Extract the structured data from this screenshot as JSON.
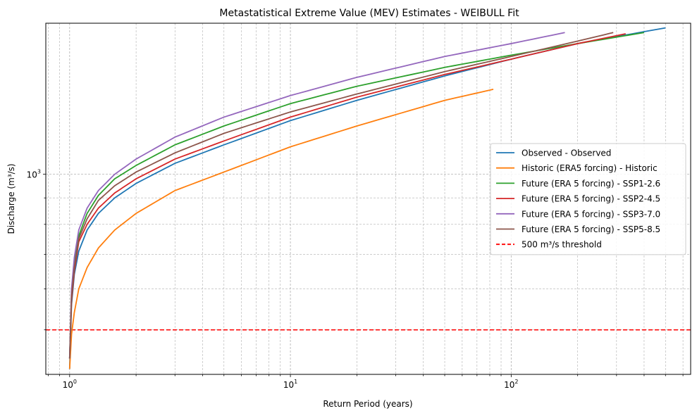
{
  "chart_data": {
    "type": "line",
    "title": "Metastatistical Extreme Value (MEV) Estimates - WEIBULL Fit",
    "xlabel": "Return Period (years)",
    "ylabel": "Discharge (m³/s)",
    "xscale": "log",
    "yscale": "log",
    "xlim": [
      0.78,
      650
    ],
    "ylim": [
      410,
      1960
    ],
    "grid": true,
    "legend_position": "center-right",
    "x_ticks": [
      {
        "value": 1,
        "label": "10",
        "sup": "0"
      },
      {
        "value": 10,
        "label": "10",
        "sup": "1"
      },
      {
        "value": 100,
        "label": "10",
        "sup": "2"
      }
    ],
    "y_ticks": [
      {
        "value": 1000,
        "label": "10",
        "sup": "3"
      }
    ],
    "series": [
      {
        "name": "Observed - Observed",
        "color": "#1f77b4",
        "x": [
          1.0,
          1.02,
          1.05,
          1.1,
          1.2,
          1.35,
          1.6,
          2,
          3,
          5,
          10,
          20,
          50,
          100,
          200,
          500
        ],
        "y": [
          420,
          560,
          640,
          710,
          780,
          840,
          900,
          960,
          1050,
          1140,
          1270,
          1390,
          1550,
          1670,
          1790,
          1920
        ]
      },
      {
        "name": "Historic (ERA5 forcing) - Historic",
        "color": "#ff7f0e",
        "x": [
          1.0,
          1.02,
          1.05,
          1.1,
          1.2,
          1.35,
          1.6,
          2,
          3,
          5,
          10,
          20,
          50,
          83
        ],
        "y": [
          420,
          490,
          540,
          600,
          660,
          720,
          780,
          840,
          930,
          1010,
          1130,
          1240,
          1390,
          1460
        ]
      },
      {
        "name": "Future (ERA 5 forcing) - SSP1-2.6",
        "color": "#2ca02c",
        "x": [
          1.0,
          1.02,
          1.05,
          1.1,
          1.2,
          1.35,
          1.6,
          2,
          3,
          5,
          10,
          20,
          50,
          100,
          200,
          400
        ],
        "y": [
          440,
          580,
          670,
          760,
          840,
          910,
          980,
          1040,
          1140,
          1240,
          1370,
          1480,
          1610,
          1700,
          1790,
          1880
        ]
      },
      {
        "name": "Future (ERA 5 forcing) - SSP2-4.5",
        "color": "#d62728",
        "x": [
          1.0,
          1.02,
          1.05,
          1.1,
          1.2,
          1.35,
          1.6,
          2,
          3,
          5,
          10,
          20,
          50,
          100,
          200,
          330
        ],
        "y": [
          440,
          570,
          650,
          740,
          800,
          860,
          920,
          980,
          1070,
          1160,
          1290,
          1410,
          1560,
          1670,
          1790,
          1870
        ]
      },
      {
        "name": "Future (ERA 5 forcing) - SSP3-7.0",
        "color": "#9467bd",
        "x": [
          1.0,
          1.02,
          1.05,
          1.1,
          1.2,
          1.35,
          1.6,
          2,
          3,
          5,
          10,
          20,
          50,
          100,
          175
        ],
        "y": [
          440,
          600,
          690,
          780,
          860,
          930,
          1000,
          1070,
          1180,
          1290,
          1420,
          1540,
          1690,
          1790,
          1880
        ]
      },
      {
        "name": "Future (ERA 5 forcing) - SSP5-8.5",
        "color": "#8c564b",
        "x": [
          1.0,
          1.02,
          1.05,
          1.1,
          1.2,
          1.35,
          1.6,
          2,
          3,
          5,
          10,
          20,
          50,
          100,
          200,
          290
        ],
        "y": [
          440,
          580,
          660,
          750,
          820,
          890,
          950,
          1010,
          1100,
          1200,
          1320,
          1430,
          1580,
          1690,
          1810,
          1880
        ]
      }
    ],
    "threshold": {
      "name": "500 m³/s threshold",
      "value": 500,
      "color": "#ff0000",
      "style": "dashed"
    }
  }
}
